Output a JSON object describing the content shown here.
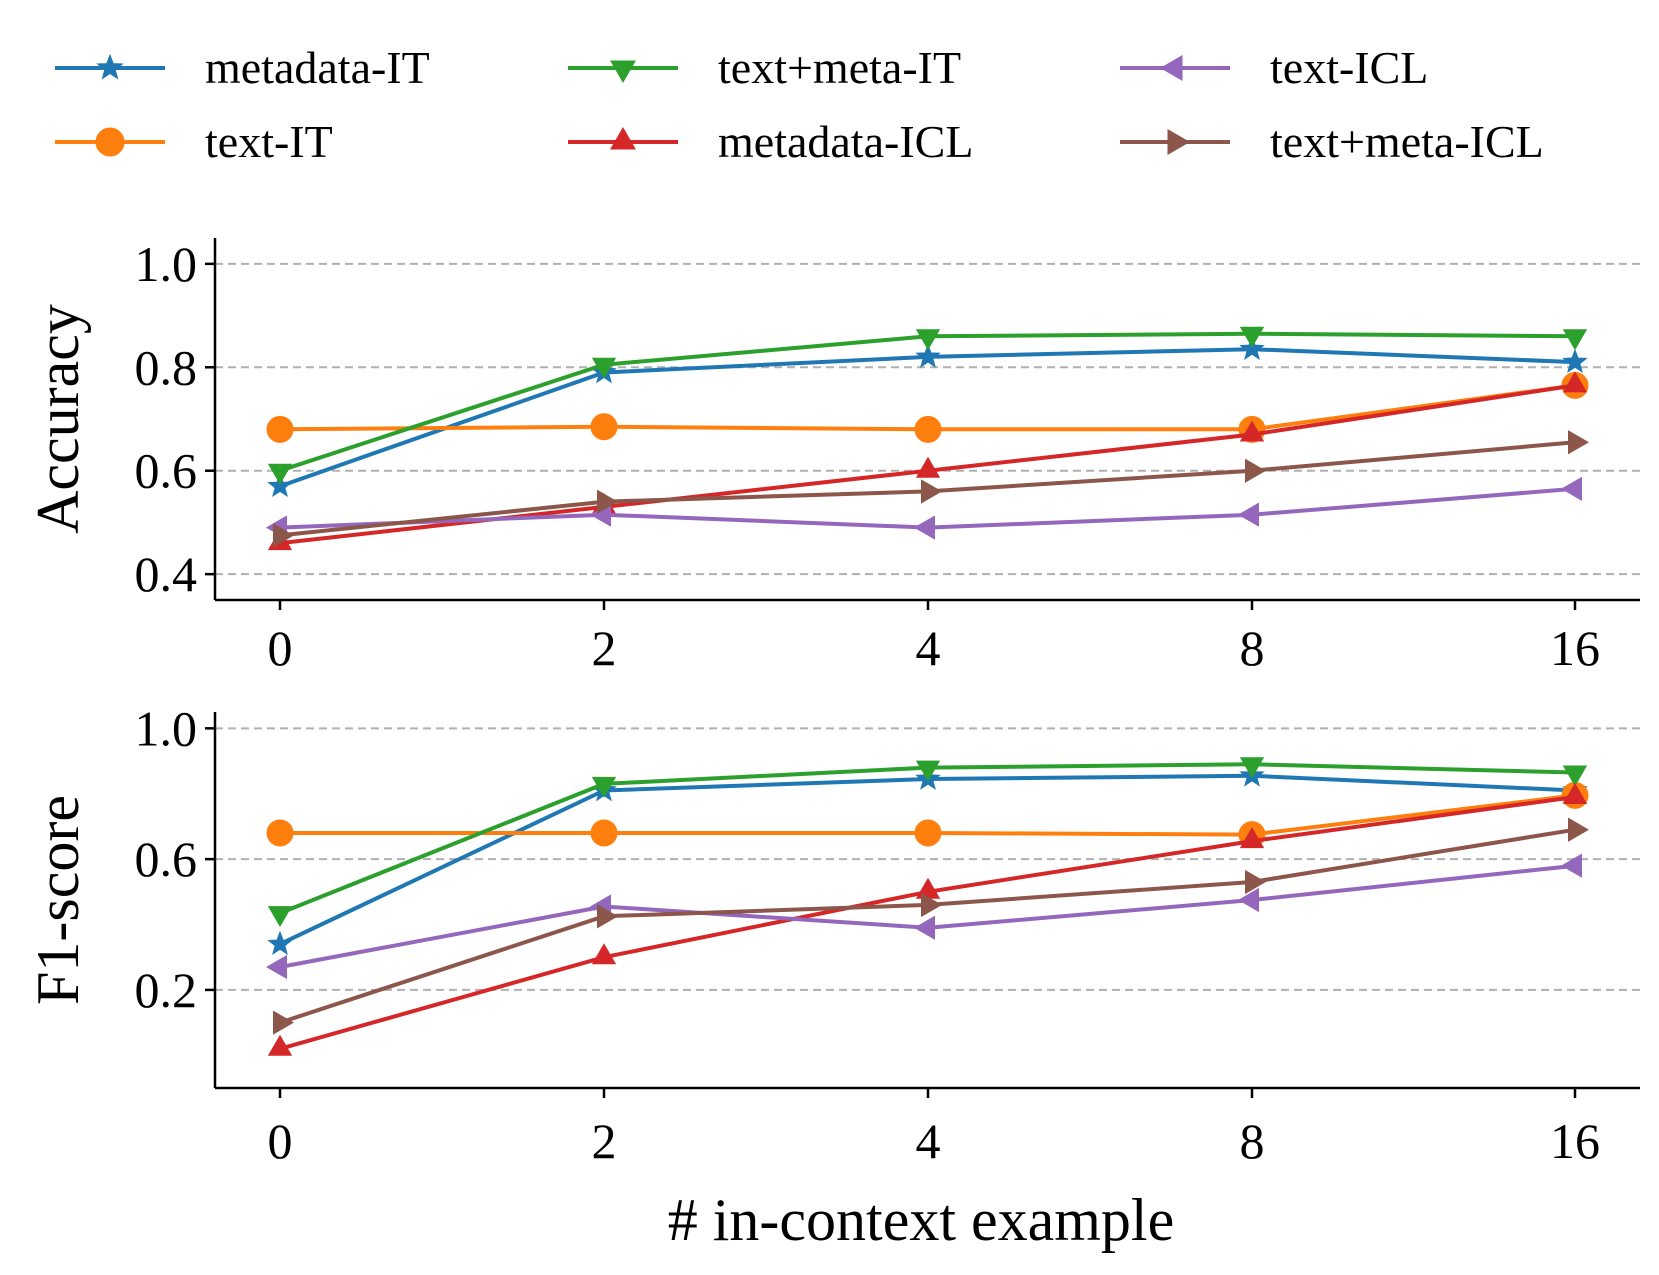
{
  "chart_data": {
    "type": "line",
    "categories": [
      "0",
      "2",
      "4",
      "8",
      "16"
    ],
    "xlabel": "# in-context example",
    "legend": [
      {
        "name": "metadata-IT",
        "color": "#1f77b4",
        "marker": "star"
      },
      {
        "name": "text+meta-IT",
        "color": "#2ca02c",
        "marker": "triangle-down"
      },
      {
        "name": "text-ICL",
        "color": "#9467bd",
        "marker": "triangle-left"
      },
      {
        "name": "text-IT",
        "color": "#ff7f0e",
        "marker": "circle"
      },
      {
        "name": "metadata-ICL",
        "color": "#d62728",
        "marker": "triangle-up"
      },
      {
        "name": "text+meta-ICL",
        "color": "#8c564b",
        "marker": "triangle-right"
      }
    ],
    "panels": [
      {
        "ylabel": "Accuracy",
        "ylim": [
          0.35,
          1.05
        ],
        "yticks": [
          "0.4",
          "0.6",
          "0.8",
          "1.0"
        ],
        "grid": "horizontal dashed",
        "series": [
          {
            "name": "metadata-IT",
            "values": [
              0.57,
              0.79,
              0.82,
              0.835,
              0.81
            ]
          },
          {
            "name": "text-IT",
            "values": [
              0.68,
              0.685,
              0.68,
              0.68,
              0.765
            ]
          },
          {
            "name": "text+meta-IT",
            "values": [
              0.6,
              0.805,
              0.86,
              0.865,
              0.86
            ]
          },
          {
            "name": "metadata-ICL",
            "values": [
              0.46,
              0.53,
              0.6,
              0.67,
              0.765
            ]
          },
          {
            "name": "text-ICL",
            "values": [
              0.49,
              0.515,
              0.49,
              0.515,
              0.565
            ]
          },
          {
            "name": "text+meta-ICL",
            "values": [
              0.475,
              0.54,
              0.56,
              0.6,
              0.655
            ]
          }
        ]
      },
      {
        "ylabel": "F1-score",
        "ylim": [
          -0.1,
          1.05
        ],
        "yticks": [
          "0.2",
          "0.6",
          "1.0"
        ],
        "grid": "horizontal dashed",
        "series": [
          {
            "name": "metadata-IT",
            "values": [
              0.34,
              0.81,
              0.845,
              0.855,
              0.81
            ]
          },
          {
            "name": "text-IT",
            "values": [
              0.68,
              0.68,
              0.68,
              0.675,
              0.795
            ]
          },
          {
            "name": "text+meta-IT",
            "values": [
              0.435,
              0.83,
              0.88,
              0.89,
              0.865
            ]
          },
          {
            "name": "metadata-ICL",
            "values": [
              0.02,
              0.3,
              0.5,
              0.655,
              0.79
            ]
          },
          {
            "name": "text-ICL",
            "values": [
              0.27,
              0.455,
              0.39,
              0.475,
              0.58
            ]
          },
          {
            "name": "text+meta-ICL",
            "values": [
              0.1,
              0.425,
              0.46,
              0.53,
              0.69
            ]
          }
        ]
      }
    ]
  }
}
